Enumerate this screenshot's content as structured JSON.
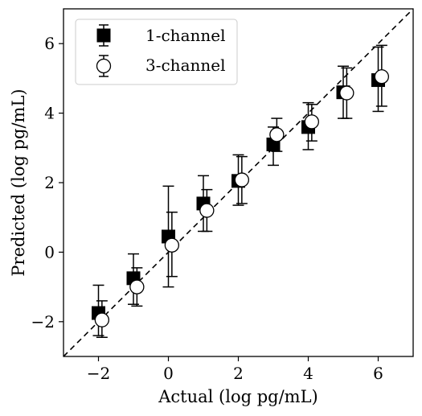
{
  "chart_data": {
    "type": "scatter",
    "xlabel": "Actual (log pg/mL)",
    "ylabel": "Predicted (log pg/mL)",
    "xlim": [
      -3,
      7
    ],
    "ylim": [
      -3,
      7
    ],
    "x_ticks": [
      -2,
      0,
      2,
      4,
      6
    ],
    "y_ticks": [
      -2,
      0,
      2,
      4,
      6
    ],
    "x_tick_labels": [
      "−2",
      "0",
      "2",
      "4",
      "6"
    ],
    "y_tick_labels": [
      "−2",
      "0",
      "2",
      "4",
      "6"
    ],
    "grid": false,
    "legend_position": "top-left",
    "reference_line": {
      "style": "dashed",
      "slope": 1,
      "intercept": 0
    },
    "series": [
      {
        "name": "1-channel",
        "marker": "square",
        "color": "#000000",
        "fill": "#000000",
        "points": [
          {
            "x": -2,
            "y": -1.75,
            "ylow": -2.4,
            "yhigh": -0.95
          },
          {
            "x": -1,
            "y": -0.75,
            "ylow": -1.5,
            "yhigh": -0.05
          },
          {
            "x": 0,
            "y": 0.45,
            "ylow": -1.0,
            "yhigh": 1.9
          },
          {
            "x": 1,
            "y": 1.4,
            "ylow": 0.6,
            "yhigh": 2.2
          },
          {
            "x": 2,
            "y": 2.05,
            "ylow": 1.35,
            "yhigh": 2.8
          },
          {
            "x": 3,
            "y": 3.1,
            "ylow": 2.5,
            "yhigh": 3.6
          },
          {
            "x": 4,
            "y": 3.6,
            "ylow": 2.95,
            "yhigh": 4.3
          },
          {
            "x": 5,
            "y": 4.6,
            "ylow": 3.85,
            "yhigh": 5.35
          },
          {
            "x": 6,
            "y": 4.95,
            "ylow": 4.05,
            "yhigh": 5.9
          }
        ]
      },
      {
        "name": "3-channel",
        "marker": "circle",
        "color": "#000000",
        "fill": "#ffffff",
        "points": [
          {
            "x": -1.9,
            "y": -1.95,
            "ylow": -2.45,
            "yhigh": -1.4
          },
          {
            "x": -0.9,
            "y": -1.0,
            "ylow": -1.55,
            "yhigh": -0.45
          },
          {
            "x": 0.1,
            "y": 0.2,
            "ylow": -0.7,
            "yhigh": 1.15
          },
          {
            "x": 1.1,
            "y": 1.2,
            "ylow": 0.6,
            "yhigh": 1.8
          },
          {
            "x": 2.1,
            "y": 2.08,
            "ylow": 1.4,
            "yhigh": 2.75
          },
          {
            "x": 3.1,
            "y": 3.38,
            "ylow": 2.9,
            "yhigh": 3.85
          },
          {
            "x": 4.1,
            "y": 3.75,
            "ylow": 3.2,
            "yhigh": 4.25
          },
          {
            "x": 5.1,
            "y": 4.58,
            "ylow": 3.85,
            "yhigh": 5.3
          },
          {
            "x": 6.1,
            "y": 5.05,
            "ylow": 4.2,
            "yhigh": 5.95
          }
        ]
      }
    ]
  }
}
